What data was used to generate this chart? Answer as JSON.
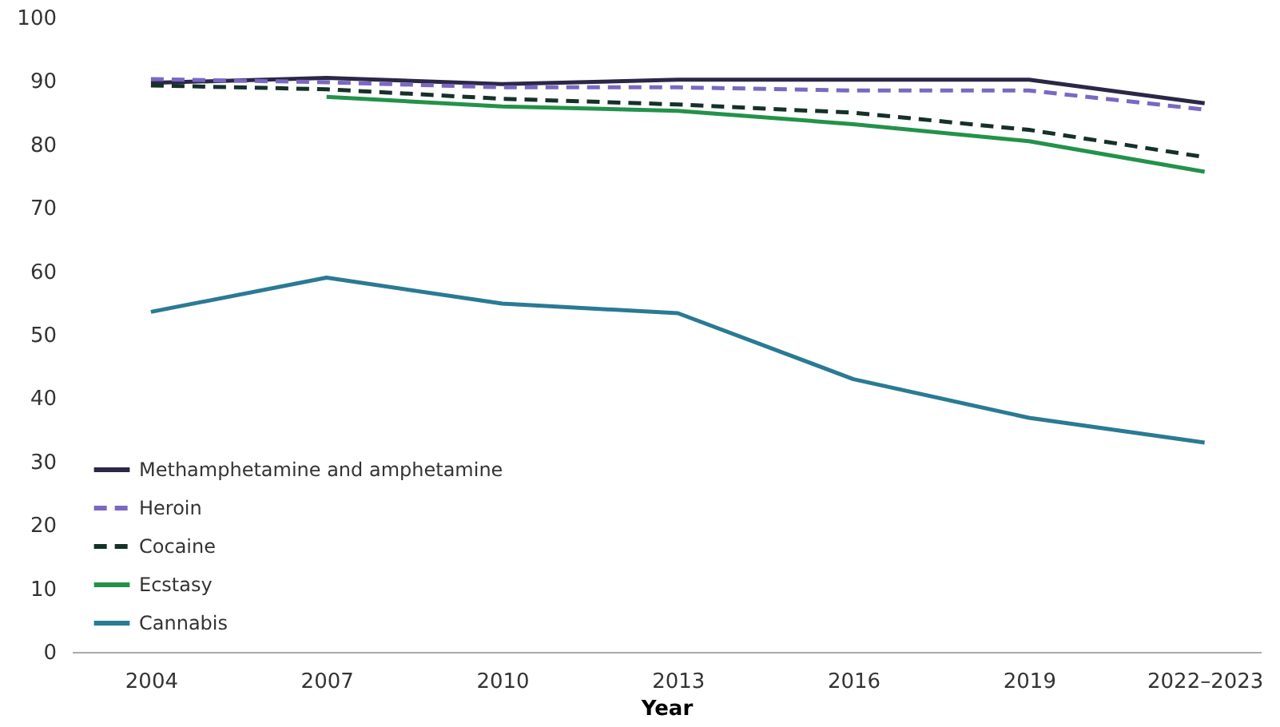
{
  "chart_data": {
    "type": "line",
    "xlabel": "Year",
    "categories": [
      "2004",
      "2007",
      "2010",
      "2013",
      "2016",
      "2019",
      "2022–2023"
    ],
    "series": [
      {
        "name": "Methamphetamine and amphetamine",
        "color": "#2b2746",
        "line_style": "solid",
        "values": [
          89.7,
          90.5,
          89.5,
          90.2,
          90.2,
          90.2,
          86.5
        ]
      },
      {
        "name": "Heroin",
        "color": "#7b68c2",
        "line_style": "dashed",
        "values": [
          90.3,
          89.8,
          89.0,
          89.0,
          88.5,
          88.5,
          85.5
        ]
      },
      {
        "name": "Cocaine",
        "color": "#16302a",
        "line_style": "dashed",
        "values": [
          89.3,
          88.7,
          87.2,
          86.3,
          85.0,
          82.3,
          78.0
        ]
      },
      {
        "name": "Ecstasy",
        "color": "#23924a",
        "line_style": "solid",
        "values": [
          null,
          87.5,
          86.0,
          85.3,
          83.2,
          80.5,
          75.7
        ]
      },
      {
        "name": "Cannabis",
        "color": "#2a7a94",
        "line_style": "solid",
        "values": [
          53.6,
          59.0,
          54.9,
          53.4,
          43.0,
          36.9,
          33.0
        ]
      }
    ],
    "ylim": [
      0,
      100
    ],
    "yticks": [
      0,
      10,
      20,
      30,
      40,
      50,
      60,
      70,
      80,
      90,
      100
    ],
    "grid": false,
    "legend": "bottom left",
    "marker": "none"
  }
}
